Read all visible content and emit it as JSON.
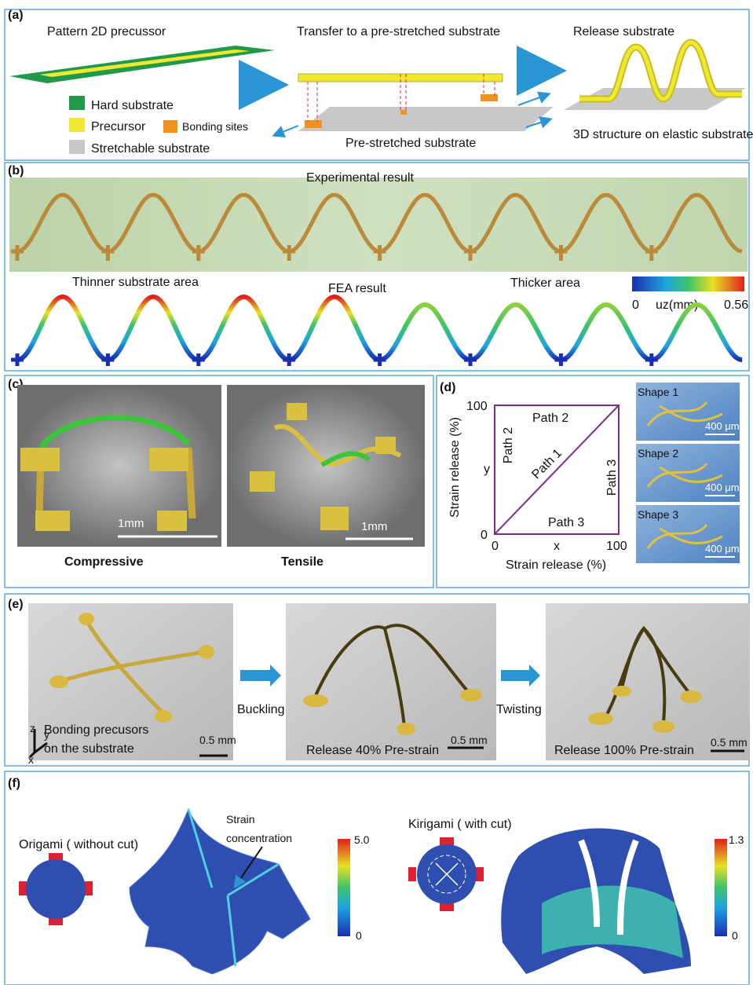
{
  "panel_a": {
    "label": "(a)",
    "step1": "Pattern 2D precussor",
    "step2": "Transfer to a pre-stretched substrate",
    "step3": "Release substrate",
    "legend": {
      "hard": "Hard substrate",
      "precursor": "Precursor",
      "bonding": "Bonding sites",
      "stretchable": "Stretchable substrate"
    },
    "prestretched": "Pre-stretched substrate",
    "result": "3D structure on elastic substrate"
  },
  "panel_b": {
    "label": "(b)",
    "experimental": "Experimental result",
    "thinner": "Thinner substrate area",
    "fea": "FEA result",
    "thicker": "Thicker area",
    "colorbar": {
      "min": "0",
      "unit": "uz(mm)",
      "max": "0.56"
    }
  },
  "panel_c": {
    "label": "(c)",
    "scale_left": "1mm",
    "scale_right": "1mm",
    "compressive": "Compressive",
    "tensile": "Tensile"
  },
  "panel_d": {
    "label": "(d)",
    "y_title": "Strain release (%)",
    "x_title": "Strain release (%)",
    "y_top": "100",
    "y_bottom": "0",
    "x_left": "0",
    "x_right": "100",
    "x_var": "x",
    "y_var": "y",
    "path1": "Path 1",
    "path2_top": "Path 2",
    "path2_left": "Path 2",
    "path3_bottom": "Path 3",
    "path3_right": "Path 3",
    "shapes": [
      {
        "name": "Shape 1",
        "scale": "400 μm"
      },
      {
        "name": "Shape 2",
        "scale": "400 μm"
      },
      {
        "name": "Shape 3",
        "scale": "400 μm"
      }
    ]
  },
  "panel_e": {
    "label": "(e)",
    "axes": {
      "z": "z",
      "y": "y",
      "x": "x"
    },
    "caption1": [
      "Bonding precusors",
      "on the substrate"
    ],
    "scales": [
      "0.5 mm",
      "0.5 mm",
      "0.5 mm"
    ],
    "buckling": "Buckling",
    "twisting": "Twisting",
    "caption2": "Release 40%  Pre-strain",
    "caption3": "Release 100%  Pre-strain"
  },
  "panel_f": {
    "label": "(f)",
    "origami": "Origami ( without cut)",
    "annotation": [
      "Strain",
      "concentration"
    ],
    "cb1_max": "5.0",
    "cb1_min": "0",
    "kirigami": "Kirigami ( with cut)",
    "cb2_max": "1.3",
    "cb2_min": "0"
  }
}
